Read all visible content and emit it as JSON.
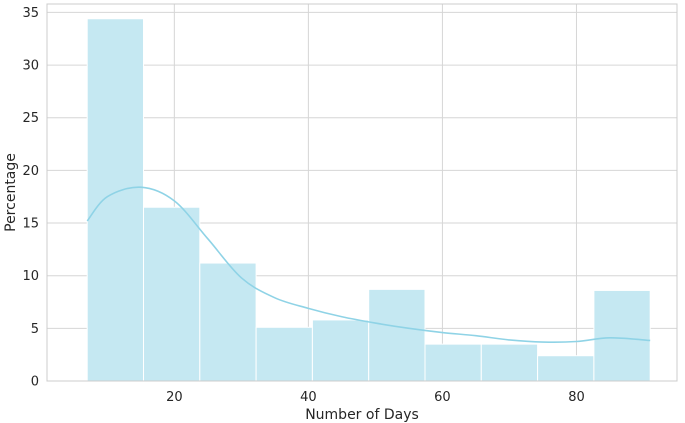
{
  "chart_data": {
    "type": "bar",
    "subtype": "histogram",
    "xlabel": "Number of Days",
    "ylabel": "Percentage",
    "xlim": [
      1,
      95
    ],
    "ylim": [
      0,
      35.8
    ],
    "xticks": [
      20,
      40,
      60,
      80
    ],
    "yticks": [
      0,
      5,
      10,
      15,
      20,
      25,
      30,
      35
    ],
    "grid": true,
    "bins": [
      {
        "x0": 7,
        "x1": 15.4,
        "value": 34.4
      },
      {
        "x0": 15.4,
        "x1": 23.8,
        "value": 16.5
      },
      {
        "x0": 23.8,
        "x1": 32.2,
        "value": 11.2
      },
      {
        "x0": 32.2,
        "x1": 40.6,
        "value": 5.1
      },
      {
        "x0": 40.6,
        "x1": 49,
        "value": 5.8
      },
      {
        "x0": 49,
        "x1": 57.4,
        "value": 8.7
      },
      {
        "x0": 57.4,
        "x1": 65.8,
        "value": 3.5
      },
      {
        "x0": 65.8,
        "x1": 74.2,
        "value": 3.5
      },
      {
        "x0": 74.2,
        "x1": 82.6,
        "value": 2.4
      },
      {
        "x0": 82.6,
        "x1": 91,
        "value": 8.6
      }
    ],
    "kde": {
      "x": [
        7,
        10,
        15,
        20,
        25,
        30,
        35,
        40,
        45,
        50,
        55,
        60,
        65,
        70,
        75,
        80,
        85,
        91
      ],
      "y": [
        15.2,
        17.5,
        18.4,
        17.1,
        13.5,
        9.8,
        7.9,
        6.9,
        6.1,
        5.5,
        5.0,
        4.6,
        4.3,
        3.9,
        3.7,
        3.75,
        4.1,
        3.85
      ]
    },
    "colors": {
      "bar_fill": "#c5e8f2",
      "bar_edge": "#ffffff",
      "kde_line": "#8fd3e6",
      "grid": "#d6d6d6",
      "frame": "#cccccc",
      "text": "#262626"
    }
  }
}
